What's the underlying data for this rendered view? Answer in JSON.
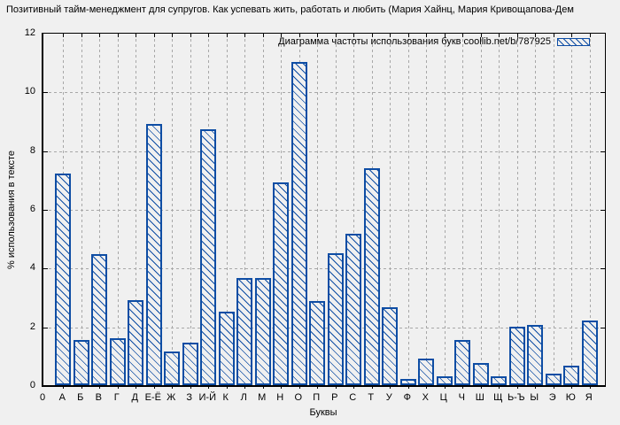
{
  "title": "Позитивный тайм-менеджмент для супругов. Как успевать жить, работать и любить (Мария Хайнц, Мария Кривощапова-Дем",
  "legend": {
    "label": "Диаграмма частоты использования букв coollib.net/b/787925"
  },
  "axes": {
    "y_label": "% использования в тексте",
    "x_label": "Буквы",
    "origin_label": "0",
    "y_ticks": [
      0,
      2,
      4,
      6,
      8,
      10,
      12
    ]
  },
  "colors": {
    "background": "#f0f0f0",
    "bar": "#0e4da4",
    "grid": "#a8a8a8",
    "text": "#000000"
  },
  "chart_data": {
    "type": "bar",
    "title": "Диаграмма частоты использования букв coollib.net/b/787925",
    "categories": [
      "А",
      "Б",
      "В",
      "Г",
      "Д",
      "Е-Ё",
      "Ж",
      "З",
      "И-Й",
      "К",
      "Л",
      "М",
      "Н",
      "О",
      "П",
      "Р",
      "С",
      "Т",
      "У",
      "Ф",
      "Х",
      "Ц",
      "Ч",
      "Ш",
      "Щ",
      "Ь-Ъ",
      "Ы",
      "Э",
      "Ю",
      "Я"
    ],
    "values": [
      7.2,
      1.55,
      4.45,
      1.6,
      2.9,
      8.9,
      1.15,
      1.45,
      8.7,
      2.5,
      3.65,
      3.65,
      6.9,
      11.0,
      2.85,
      4.5,
      5.15,
      7.4,
      2.65,
      0.2,
      0.9,
      0.3,
      1.55,
      0.75,
      0.3,
      2.0,
      2.05,
      0.4,
      0.65,
      2.2
    ],
    "xlabel": "Буквы",
    "ylabel": "% использования в тексте",
    "ylim": [
      0,
      12
    ],
    "grid": true,
    "legend_position": "top-right",
    "bar_style": "blue-diagonal-hatch"
  }
}
